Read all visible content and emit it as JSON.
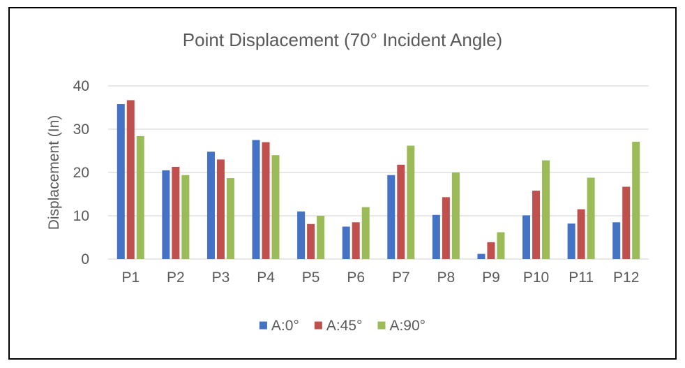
{
  "chart_data": {
    "type": "bar",
    "title": "Point Displacement (70° Incident Angle)",
    "xlabel": "",
    "ylabel": "Displacement (In)",
    "ylim": [
      0,
      40
    ],
    "yticks": [
      0,
      10,
      20,
      30,
      40
    ],
    "grid": true,
    "legend_position": "bottom",
    "categories": [
      "P1",
      "P2",
      "P3",
      "P4",
      "P5",
      "P6",
      "P7",
      "P8",
      "P9",
      "P10",
      "P11",
      "P12"
    ],
    "series": [
      {
        "name": "A:0°",
        "color": "#4472C4",
        "values": [
          35.8,
          20.5,
          24.8,
          27.5,
          11.0,
          7.5,
          19.4,
          10.2,
          1.2,
          10.1,
          8.2,
          8.5
        ]
      },
      {
        "name": "A:45°",
        "color": "#C0504D",
        "values": [
          36.7,
          21.3,
          23.0,
          27.0,
          8.1,
          8.5,
          21.8,
          14.3,
          3.9,
          15.8,
          11.5,
          16.7
        ]
      },
      {
        "name": "A:90°",
        "color": "#9BBB59",
        "values": [
          28.4,
          19.4,
          18.7,
          24.0,
          10.0,
          12.0,
          26.2,
          20.0,
          6.2,
          22.8,
          18.8,
          27.1
        ]
      }
    ]
  }
}
